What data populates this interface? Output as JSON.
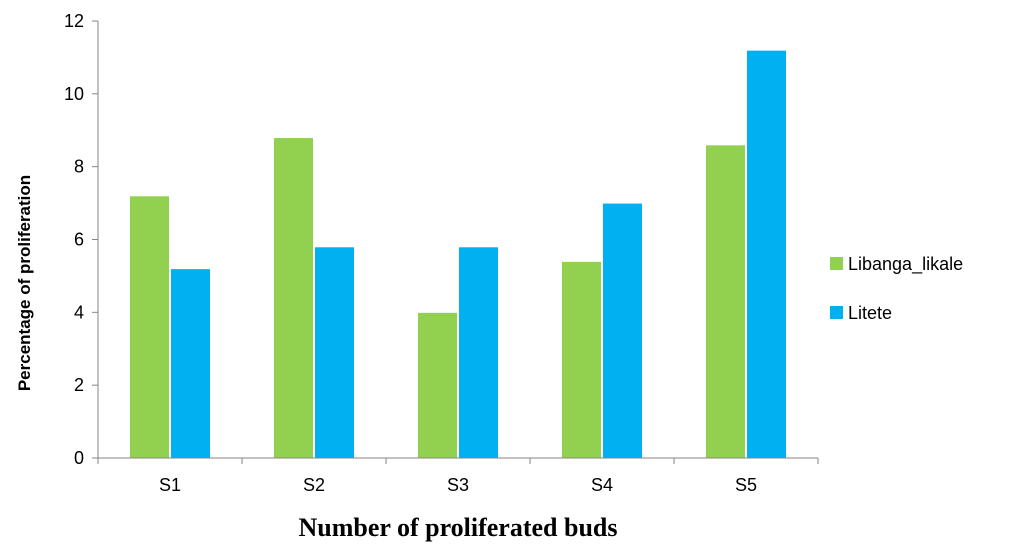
{
  "chart_data": {
    "type": "bar",
    "title": "",
    "xlabel": "Number of proliferated buds",
    "ylabel": "Percentage of proliferation",
    "categories": [
      "S1",
      "S2",
      "S3",
      "S4",
      "S5"
    ],
    "series": [
      {
        "name": "Libanga_likale",
        "color": "#92d050",
        "values": [
          7.2,
          8.8,
          4.0,
          5.4,
          8.6
        ]
      },
      {
        "name": "Litete",
        "color": "#00b0f0",
        "values": [
          5.2,
          5.8,
          5.8,
          7.0,
          11.2
        ]
      }
    ],
    "ylim": [
      0,
      12
    ],
    "yticks": [
      0,
      2,
      4,
      6,
      8,
      10,
      12
    ],
    "grid": false,
    "legend": "right"
  }
}
